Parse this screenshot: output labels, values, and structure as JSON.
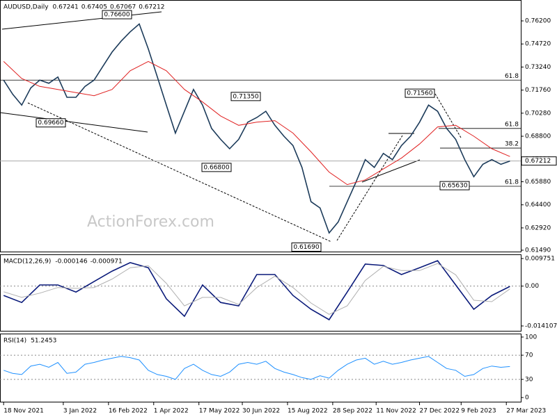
{
  "chart_data": [
    {
      "type": "line",
      "title": "AUDUSD,Daily",
      "ohlc": [
        0.67241,
        0.67405,
        0.67067,
        0.67212
      ],
      "watermark": "ActionForex.com",
      "xlim": [
        -2,
        286
      ],
      "xticks": [
        {
          "value": 0,
          "label": "18 Nov 2021"
        },
        {
          "value": 33,
          "label": "3 Jan 2022"
        },
        {
          "value": 58,
          "label": "16 Feb 2022"
        },
        {
          "value": 83,
          "label": "1 Apr 2022"
        },
        {
          "value": 108,
          "label": "17 May 2022"
        },
        {
          "value": 132,
          "label": "30 Jun 2022"
        },
        {
          "value": 157,
          "label": "15 Aug 2022"
        },
        {
          "value": 182,
          "label": "28 Sep 2022"
        },
        {
          "value": 206,
          "label": "11 Nov 2022"
        },
        {
          "value": 230,
          "label": "27 Dec 2022"
        },
        {
          "value": 253,
          "label": "9 Feb 2023"
        },
        {
          "value": 278,
          "label": "27 Mar 2023"
        }
      ],
      "ylim": [
        0.614,
        0.7754
      ],
      "yticks": [
        {
          "value": 0.762,
          "label": "0.76200"
        },
        {
          "value": 0.7472,
          "label": "0.74720"
        },
        {
          "value": 0.7324,
          "label": "0.73240"
        },
        {
          "value": 0.7176,
          "label": "0.71760"
        },
        {
          "value": 0.7028,
          "label": "0.70280"
        },
        {
          "value": 0.688,
          "label": "0.68800"
        },
        {
          "value": 0.6732,
          "label": "0.67320"
        },
        {
          "value": 0.6588,
          "label": "0.65880"
        },
        {
          "value": 0.644,
          "label": "0.64400"
        },
        {
          "value": 0.6292,
          "label": "0.62920"
        },
        {
          "value": 0.6149,
          "label": "0.61490"
        }
      ],
      "series": [
        {
          "color": "#1c3b5a",
          "x": [
            0,
            5,
            10,
            15,
            20,
            25,
            30,
            35,
            40,
            45,
            50,
            55,
            60,
            65,
            70,
            75,
            80,
            85,
            90,
            95,
            100,
            105,
            110,
            115,
            120,
            125,
            130,
            135,
            140,
            145,
            150,
            155,
            160,
            165,
            170,
            175,
            180,
            185,
            190,
            195,
            200,
            205,
            210,
            215,
            220,
            225,
            230,
            235,
            240,
            245,
            250,
            255,
            260,
            265,
            270,
            275,
            280
          ],
          "values": [
            0.724,
            0.715,
            0.708,
            0.719,
            0.724,
            0.722,
            0.726,
            0.713,
            0.713,
            0.72,
            0.724,
            0.733,
            0.742,
            0.749,
            0.755,
            0.76,
            0.744,
            0.726,
            0.708,
            0.69,
            0.704,
            0.718,
            0.708,
            0.693,
            0.686,
            0.68,
            0.686,
            0.697,
            0.7,
            0.704,
            0.695,
            0.688,
            0.682,
            0.668,
            0.646,
            0.642,
            0.626,
            0.633,
            0.646,
            0.659,
            0.673,
            0.668,
            0.677,
            0.673,
            0.682,
            0.688,
            0.697,
            0.708,
            0.704,
            0.693,
            0.686,
            0.673,
            0.662,
            0.67,
            0.673,
            0.67,
            0.6721
          ]
        },
        {
          "color": "#e02020",
          "x": [
            0,
            10,
            20,
            30,
            40,
            50,
            60,
            70,
            80,
            90,
            100,
            110,
            120,
            130,
            140,
            150,
            160,
            170,
            180,
            190,
            200,
            210,
            220,
            230,
            240,
            250,
            260,
            270,
            280
          ],
          "values": [
            0.736,
            0.725,
            0.72,
            0.718,
            0.716,
            0.714,
            0.718,
            0.73,
            0.736,
            0.73,
            0.718,
            0.71,
            0.701,
            0.695,
            0.697,
            0.698,
            0.69,
            0.678,
            0.665,
            0.657,
            0.66,
            0.667,
            0.674,
            0.683,
            0.694,
            0.695,
            0.688,
            0.68,
            0.675
          ]
        }
      ],
      "levels": [
        {
          "price": 0.724,
          "ratio": 61.8
        },
        {
          "price": 0.693,
          "ratio": 61.8
        },
        {
          "price": 0.6804,
          "ratio": 38.2
        },
        {
          "price": 0.6559,
          "ratio": 61.8
        }
      ],
      "annotations": [
        {
          "value": 0.766,
          "label": "0.76600"
        },
        {
          "value": 0.6966,
          "label": "0.69660"
        },
        {
          "value": 0.7135,
          "label": "0.71350"
        },
        {
          "value": 0.668,
          "label": "0.66800"
        },
        {
          "value": 0.6169,
          "label": "0.61690"
        },
        {
          "value": 0.7156,
          "label": "0.71560"
        },
        {
          "value": 0.6563,
          "label": "0.65630"
        }
      ]
    },
    {
      "type": "line",
      "title": "MACD(12,26,9)",
      "readings": [
        -0.000146,
        -0.000971
      ],
      "xlim": [
        -2,
        286
      ],
      "grid": true,
      "ylim": [
        -0.01583,
        0.01123
      ],
      "yticks": [
        0.009751,
        {
          "value": 0,
          "label": "0.00"
        },
        -0.014107
      ],
      "series": [
        {
          "color": "#0a1a7a",
          "x": [
            0,
            10,
            20,
            30,
            40,
            50,
            60,
            70,
            80,
            90,
            100,
            110,
            120,
            130,
            140,
            150,
            160,
            170,
            180,
            190,
            200,
            210,
            220,
            230,
            240,
            250,
            260,
            270,
            280
          ],
          "values": [
            -0.0033,
            -0.0058,
            0.0004,
            0.0004,
            -0.0021,
            0.0016,
            0.0053,
            0.0083,
            0.0065,
            -0.0045,
            -0.0107,
            0.0004,
            -0.0058,
            -0.007,
            0.0041,
            0.0041,
            -0.0033,
            -0.0082,
            -0.0119,
            -0.0021,
            0.0078,
            0.0073,
            0.0041,
            0.0065,
            0.009,
            0.0004,
            -0.0082,
            -0.0033,
            -0.0001
          ]
        },
        {
          "color": "#b0b0b0",
          "x": [
            0,
            10,
            20,
            30,
            40,
            50,
            60,
            70,
            80,
            90,
            100,
            110,
            120,
            130,
            140,
            150,
            160,
            170,
            180,
            190,
            200,
            210,
            220,
            230,
            240,
            250,
            260,
            270,
            280
          ],
          "values": [
            -0.002,
            -0.004,
            -0.0025,
            -0.0005,
            -0.0008,
            -0.0005,
            0.0025,
            0.0065,
            0.0072,
            0.001,
            -0.007,
            -0.004,
            -0.004,
            -0.0065,
            -0.0005,
            0.0035,
            -0.0005,
            -0.006,
            -0.01,
            -0.007,
            0.002,
            0.007,
            0.0055,
            0.0055,
            0.008,
            0.004,
            -0.005,
            -0.0055,
            -0.001
          ]
        }
      ]
    },
    {
      "type": "line",
      "title": "RSI(14)",
      "readings": [
        51.2453
      ],
      "xlim": [
        -2,
        286
      ],
      "grid": true,
      "ylim": [
        -6.9,
        105.7
      ],
      "yticks": [
        100,
        70,
        30,
        0
      ],
      "series": [
        {
          "color": "#1e90ff",
          "x": [
            0,
            5,
            10,
            15,
            20,
            25,
            30,
            35,
            40,
            45,
            50,
            55,
            60,
            65,
            70,
            75,
            80,
            85,
            90,
            95,
            100,
            105,
            110,
            115,
            120,
            125,
            130,
            135,
            140,
            145,
            150,
            155,
            160,
            165,
            170,
            175,
            180,
            185,
            190,
            195,
            200,
            205,
            210,
            215,
            220,
            225,
            230,
            235,
            240,
            245,
            250,
            255,
            260,
            265,
            270,
            275,
            280
          ],
          "values": [
            45,
            40,
            38,
            52,
            55,
            50,
            58,
            40,
            42,
            55,
            58,
            62,
            65,
            68,
            66,
            62,
            45,
            38,
            35,
            30,
            48,
            55,
            45,
            38,
            35,
            42,
            55,
            58,
            55,
            60,
            48,
            42,
            38,
            33,
            30,
            36,
            32,
            45,
            55,
            62,
            65,
            55,
            60,
            55,
            58,
            62,
            65,
            68,
            58,
            48,
            45,
            35,
            38,
            48,
            52,
            50,
            51.2453
          ]
        }
      ]
    }
  ]
}
